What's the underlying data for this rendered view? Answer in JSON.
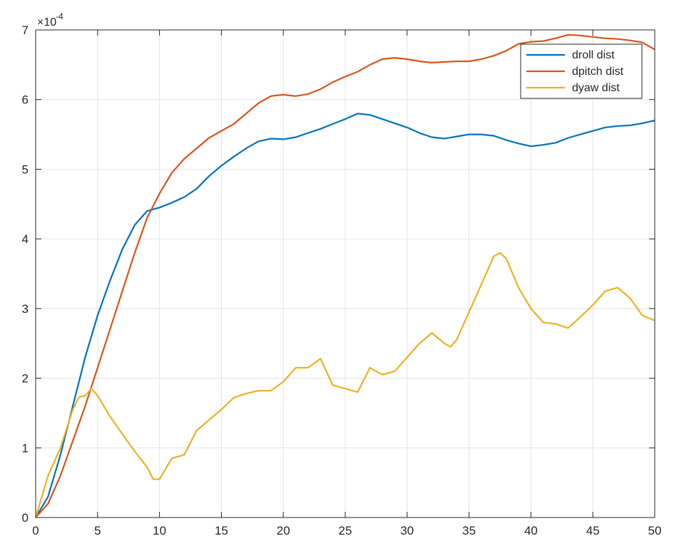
{
  "chart_data": {
    "type": "line",
    "title": "",
    "xlabel": "",
    "ylabel": "",
    "xlim": [
      0,
      50
    ],
    "ylim": [
      0,
      7
    ],
    "y_exponent": "-4",
    "y_multiplier_symbol": "×10",
    "grid": true,
    "legend_position": "top-right",
    "x_ticks": [
      "0",
      "5",
      "10",
      "15",
      "20",
      "25",
      "30",
      "35",
      "40",
      "45",
      "50"
    ],
    "y_ticks": [
      "0",
      "1",
      "2",
      "3",
      "4",
      "5",
      "6",
      "7"
    ],
    "series": [
      {
        "name": "droll dist",
        "color": "#0072BD",
        "x": [
          0,
          1,
          2,
          3,
          4,
          5,
          6,
          7,
          8,
          9,
          10,
          11,
          12,
          13,
          14,
          15,
          16,
          17,
          18,
          19,
          20,
          21,
          22,
          23,
          24,
          25,
          26,
          27,
          28,
          29,
          30,
          31,
          32,
          33,
          34,
          35,
          36,
          37,
          38,
          39,
          40,
          41,
          42,
          43,
          44,
          45,
          46,
          47,
          48,
          49,
          50
        ],
        "y": [
          0,
          0.3,
          0.9,
          1.6,
          2.3,
          2.9,
          3.4,
          3.85,
          4.2,
          4.4,
          4.45,
          4.52,
          4.6,
          4.72,
          4.9,
          5.05,
          5.18,
          5.3,
          5.4,
          5.44,
          5.43,
          5.46,
          5.52,
          5.58,
          5.65,
          5.72,
          5.8,
          5.78,
          5.72,
          5.66,
          5.6,
          5.52,
          5.46,
          5.44,
          5.47,
          5.5,
          5.5,
          5.48,
          5.42,
          5.37,
          5.33,
          5.35,
          5.38,
          5.45,
          5.5,
          5.55,
          5.6,
          5.62,
          5.63,
          5.66,
          5.7
        ]
      },
      {
        "name": "dpitch dist",
        "color": "#D95319",
        "x": [
          0,
          1,
          2,
          3,
          4,
          5,
          6,
          7,
          8,
          9,
          10,
          11,
          12,
          13,
          14,
          15,
          16,
          17,
          18,
          19,
          20,
          21,
          22,
          23,
          24,
          25,
          26,
          27,
          28,
          29,
          30,
          31,
          32,
          33,
          34,
          35,
          36,
          37,
          38,
          39,
          40,
          41,
          42,
          43,
          44,
          45,
          46,
          47,
          48,
          49,
          50
        ],
        "y": [
          0,
          0.2,
          0.6,
          1.1,
          1.6,
          2.15,
          2.7,
          3.25,
          3.8,
          4.3,
          4.65,
          4.95,
          5.15,
          5.3,
          5.45,
          5.55,
          5.65,
          5.8,
          5.95,
          6.05,
          6.07,
          6.05,
          6.08,
          6.15,
          6.25,
          6.33,
          6.4,
          6.5,
          6.58,
          6.6,
          6.58,
          6.55,
          6.53,
          6.54,
          6.55,
          6.55,
          6.58,
          6.63,
          6.7,
          6.8,
          6.83,
          6.84,
          6.88,
          6.93,
          6.92,
          6.9,
          6.88,
          6.87,
          6.85,
          6.82,
          6.72
        ]
      },
      {
        "name": "dyaw dist",
        "color": "#EDB120",
        "x": [
          0,
          1,
          2,
          3,
          3.5,
          4,
          4.5,
          5,
          6,
          7,
          8,
          9,
          9.5,
          10,
          10.5,
          11,
          12,
          13,
          14,
          15,
          16,
          17,
          18,
          19,
          20,
          21,
          22,
          23,
          24,
          25,
          26,
          27,
          28,
          29,
          30,
          31,
          32,
          33,
          33.5,
          34,
          35,
          36,
          37,
          37.5,
          38,
          39,
          40,
          41,
          42,
          43,
          44,
          45,
          46,
          47,
          48,
          49,
          50
        ],
        "y": [
          0,
          0.6,
          1.0,
          1.55,
          1.73,
          1.75,
          1.85,
          1.75,
          1.45,
          1.2,
          0.95,
          0.72,
          0.55,
          0.55,
          0.7,
          0.85,
          0.9,
          1.25,
          1.4,
          1.55,
          1.72,
          1.78,
          1.82,
          1.82,
          1.95,
          2.15,
          2.15,
          2.28,
          1.9,
          1.85,
          1.8,
          2.15,
          2.05,
          2.1,
          2.3,
          2.5,
          2.65,
          2.5,
          2.45,
          2.55,
          2.95,
          3.35,
          3.75,
          3.8,
          3.72,
          3.3,
          3.0,
          2.8,
          2.78,
          2.72,
          2.88,
          3.05,
          3.25,
          3.3,
          3.15,
          2.9,
          2.83
        ]
      }
    ]
  }
}
